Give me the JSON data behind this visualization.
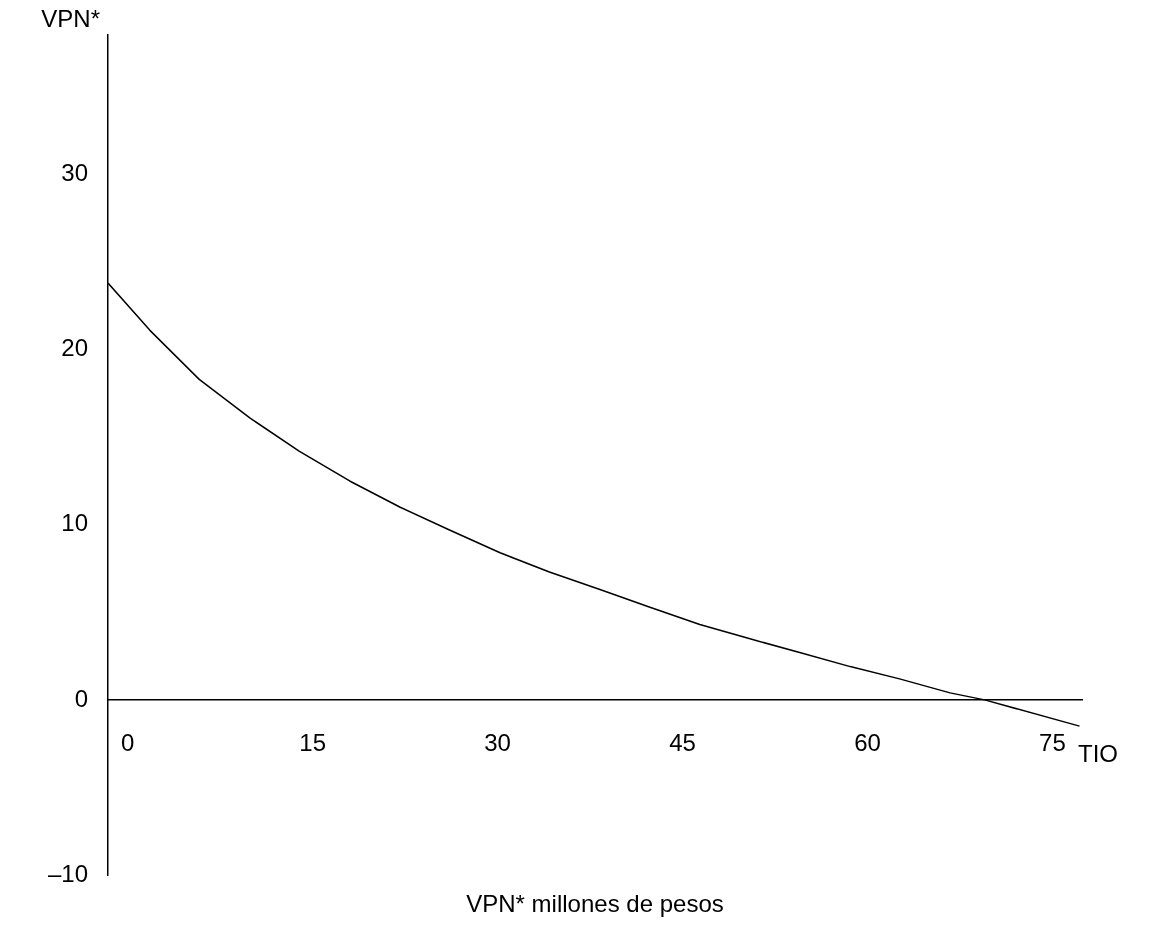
{
  "chart_data": {
    "type": "line",
    "xlabel": "TIO",
    "ylabel": "VPN*",
    "annotations": [
      "VPN* millones de pesos"
    ],
    "xlim": [
      -1.6,
      77.4
    ],
    "ylim": [
      -10,
      38
    ],
    "xticks": [
      0,
      15,
      30,
      45,
      60,
      75
    ],
    "yticks": [
      {
        "value": -10,
        "label": "–10"
      },
      0,
      10,
      20,
      30
    ],
    "grid": false,
    "marker": "none",
    "line_style": "solid",
    "series": [
      {
        "color": "#000000",
        "x": [
          -1.6,
          1.8,
          5.8,
          9.9,
          13.9,
          18.0,
          22.1,
          26.1,
          30.2,
          34.2,
          38.3,
          42.3,
          46.4,
          50.4,
          54.5,
          58.6,
          62.6,
          66.7,
          69.5,
          77.2
        ],
        "values": [
          23.8,
          21.1,
          18.3,
          16.1,
          14.2,
          12.5,
          11.0,
          9.7,
          8.4,
          7.3,
          6.3,
          5.3,
          4.3,
          3.5,
          2.7,
          1.9,
          1.2,
          0.4,
          0,
          -1.5
        ]
      }
    ]
  }
}
